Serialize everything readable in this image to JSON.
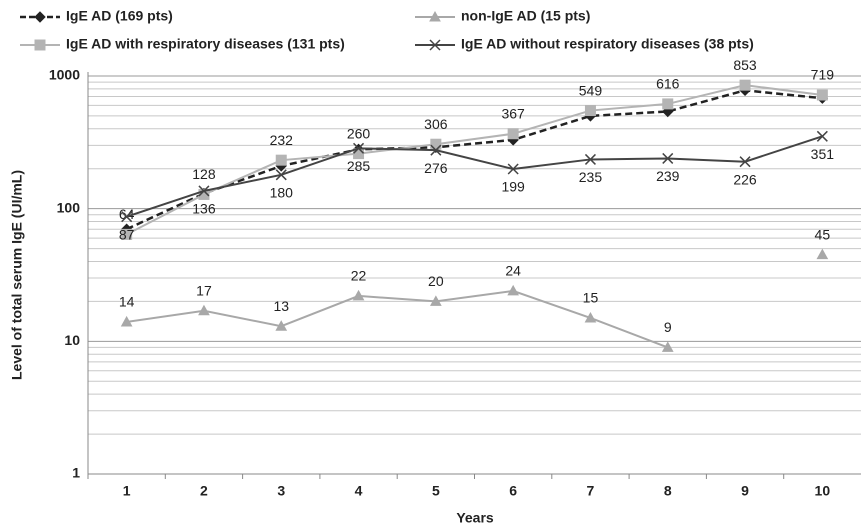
{
  "chart_data": {
    "type": "line",
    "x_label": "Years",
    "y_label": "Level of total serum IgE (UI/mL)",
    "categories": [
      "1",
      "2",
      "3",
      "4",
      "5",
      "6",
      "7",
      "8",
      "9",
      "10"
    ],
    "log_scale": true,
    "ylim": [
      1,
      1000
    ],
    "yticks": [
      1,
      10,
      100,
      1000
    ],
    "grid": true,
    "minor_grid": true,
    "legend_position": "top",
    "series": [
      {
        "name": "IgE AD (169 pts)",
        "color": "#222222",
        "dashed": true,
        "marker": "diamond",
        "data_labels": false,
        "values": [
          70,
          130,
          210,
          280,
          290,
          330,
          500,
          540,
          780,
          680
        ]
      },
      {
        "name": "non-IgE AD (15 pts)",
        "color": "#a8a8a8",
        "dashed": false,
        "marker": "triangle",
        "data_labels": true,
        "label_position": "above",
        "values": [
          14,
          17,
          13,
          22,
          20,
          24,
          15,
          9,
          null,
          45
        ]
      },
      {
        "name": "IgE AD with respiratory diseases (131 pts)",
        "color": "#b4b4b4",
        "dashed": false,
        "marker": "square",
        "data_labels": true,
        "label_position": "above",
        "values": [
          64,
          128,
          232,
          260,
          306,
          367,
          549,
          616,
          853,
          719
        ]
      },
      {
        "name": "IgE AD without respiratory diseases (38 pts)",
        "color": "#444444",
        "dashed": false,
        "marker": "cross",
        "data_labels": true,
        "label_position": "below",
        "values": [
          87,
          136,
          180,
          285,
          276,
          199,
          235,
          239,
          226,
          351
        ]
      }
    ]
  }
}
